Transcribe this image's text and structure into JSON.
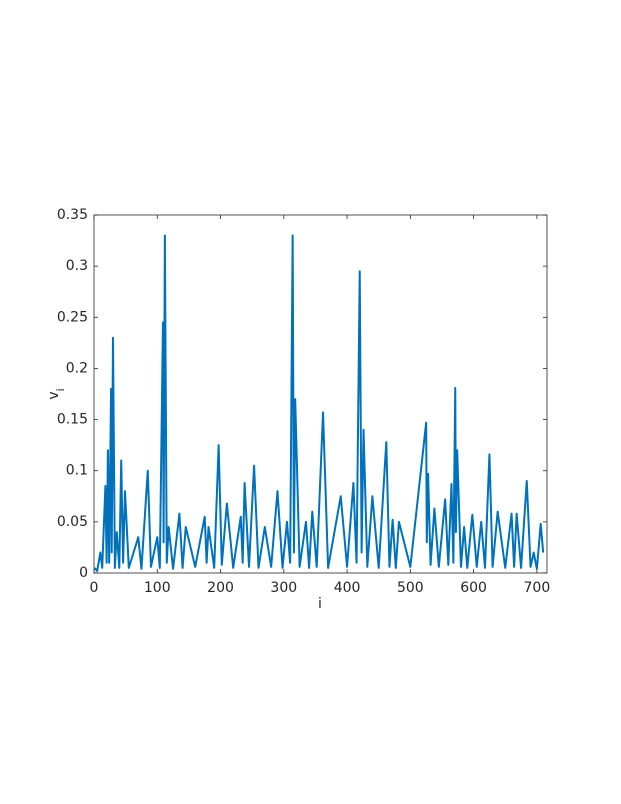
{
  "chart_data": {
    "type": "line",
    "xlabel": "i",
    "ylabel": {
      "text": "v",
      "subscript": "i"
    },
    "xlim": [
      0,
      716
    ],
    "xticks": [
      0,
      100,
      200,
      300,
      400,
      500,
      600,
      700
    ],
    "ylim": [
      0,
      0.35
    ],
    "yticks": [
      0,
      0.05,
      0.1,
      0.15,
      0.2,
      0.25,
      0.3,
      0.35
    ],
    "grid": false,
    "x": [
      1,
      5,
      10,
      13,
      18,
      20,
      22,
      24,
      27,
      28,
      30,
      33,
      36,
      40,
      43,
      46,
      49,
      55,
      70,
      75,
      85,
      90,
      100,
      104,
      109,
      110,
      112,
      115,
      118,
      125,
      135,
      140,
      145,
      160,
      175,
      178,
      181,
      190,
      197,
      202,
      210,
      220,
      232,
      235,
      238,
      245,
      253,
      260,
      270,
      280,
      290,
      298,
      305,
      310,
      314,
      316,
      318,
      325,
      335,
      340,
      345,
      352,
      362,
      370,
      390,
      400,
      410,
      415,
      420,
      423,
      426,
      432,
      440,
      450,
      462,
      467,
      472,
      477,
      482,
      500,
      525,
      526,
      528,
      532,
      538,
      545,
      555,
      560,
      565,
      568,
      571,
      572,
      574,
      580,
      585,
      590,
      598,
      605,
      612,
      618,
      625,
      630,
      638,
      650,
      660,
      664,
      668,
      675,
      684,
      690,
      695,
      700,
      706,
      710
    ],
    "series": [
      {
        "color": "#0072bd",
        "values": [
          0.005,
          0.002,
          0.02,
          0.005,
          0.085,
          0.01,
          0.12,
          0.01,
          0.18,
          0.02,
          0.23,
          0.005,
          0.04,
          0.005,
          0.11,
          0.01,
          0.08,
          0.005,
          0.035,
          0.004,
          0.1,
          0.006,
          0.035,
          0.005,
          0.245,
          0.03,
          0.33,
          0.01,
          0.045,
          0.004,
          0.058,
          0.005,
          0.045,
          0.006,
          0.055,
          0.01,
          0.045,
          0.005,
          0.125,
          0.008,
          0.068,
          0.005,
          0.055,
          0.01,
          0.088,
          0.006,
          0.105,
          0.005,
          0.045,
          0.006,
          0.08,
          0.005,
          0.05,
          0.01,
          0.33,
          0.02,
          0.17,
          0.006,
          0.05,
          0.005,
          0.06,
          0.006,
          0.157,
          0.005,
          0.075,
          0.006,
          0.088,
          0.01,
          0.295,
          0.02,
          0.14,
          0.006,
          0.075,
          0.005,
          0.128,
          0.006,
          0.052,
          0.005,
          0.05,
          0.006,
          0.147,
          0.03,
          0.097,
          0.008,
          0.063,
          0.006,
          0.072,
          0.008,
          0.087,
          0.01,
          0.181,
          0.04,
          0.12,
          0.006,
          0.045,
          0.005,
          0.057,
          0.006,
          0.05,
          0.005,
          0.116,
          0.006,
          0.06,
          0.005,
          0.058,
          0.006,
          0.058,
          0.005,
          0.09,
          0.006,
          0.02,
          0.004,
          0.048,
          0.02
        ]
      }
    ]
  }
}
